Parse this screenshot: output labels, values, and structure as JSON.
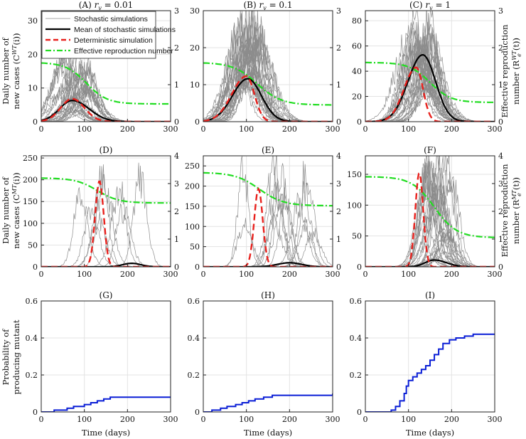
{
  "colors": {
    "stochastic": "#8c8c8c",
    "mean": "#000000",
    "deterministic": "#e8201c",
    "effective_r": "#22dd22",
    "probability": "#0a1ed6",
    "grid": "#e3e3e3",
    "axis": "#222222"
  },
  "legend": {
    "stochastic": "Stochastic simulations",
    "mean": "Mean of stochastic simulations",
    "deterministic": "Deterministic simulation",
    "effective_r": "Effective reproduction number"
  },
  "labels": {
    "row1_ylabel_left_1": "Daily number of",
    "row1_ylabel_left_2": "new cases (C",
    "row1_ylabel_left_sup": "WT",
    "row1_ylabel_left_tail": "(i))",
    "row1_ylabel_right_1": "Effective reproduction",
    "row1_ylabel_right_2": "number (R",
    "row1_ylabel_right_sup": "WT",
    "row1_ylabel_right_sub": "e",
    "row1_ylabel_right_tail": "(t))",
    "row2_ylabel_left_1": "Daily number of",
    "row2_ylabel_left_2": "new cases (C",
    "row2_ylabel_left_sup": "MT",
    "row2_ylabel_left_tail": "(i))",
    "row2_ylabel_right_1": "Effective reproduction",
    "row2_ylabel_right_2": "number (R",
    "row2_ylabel_right_sup": "MT",
    "row2_ylabel_right_sub": "e",
    "row2_ylabel_right_tail": "(t))",
    "row3_ylabel_1": "Probability of",
    "row3_ylabel_2": "producing mutant",
    "xlabel": "Time (days)"
  },
  "chart_data": [
    {
      "id": "A",
      "type": "line",
      "title": "(A) r_v = 0.01",
      "title_text": "(A) ",
      "rv": "0.01",
      "xlim": [
        0,
        300
      ],
      "xticks": [
        0,
        100,
        200,
        300
      ],
      "ylim": [
        0,
        33
      ],
      "yticks": [
        0,
        10,
        20,
        30
      ],
      "y2lim": [
        0,
        3
      ],
      "y2ticks": [
        0,
        1,
        2,
        3
      ],
      "stochastic_count": 30,
      "stoch_peak_range": [
        40,
        110
      ],
      "stoch_amp_range": [
        2,
        20
      ],
      "stoch_width": 35,
      "mean": {
        "peak_day": 72,
        "peak": 6.3,
        "width_left": 42,
        "width_right": 55
      },
      "deterministic": {
        "peak_day": 72,
        "peak": 6.8,
        "width_left": 38,
        "width_right": 40
      },
      "effective_r": {
        "start": 1.6,
        "end": 0.48,
        "mid_day": 105,
        "steepness": 24
      },
      "legend": true
    },
    {
      "id": "B",
      "type": "line",
      "title": "(B) r_v = 0.1",
      "title_text": "(B) ",
      "rv": "0.1",
      "xlim": [
        0,
        300
      ],
      "xticks": [
        0,
        100,
        200,
        300
      ],
      "ylim": [
        0,
        30
      ],
      "yticks": [
        0,
        10,
        20,
        30
      ],
      "y2lim": [
        0,
        3
      ],
      "y2ticks": [
        0,
        1,
        2,
        3
      ],
      "stochastic_count": 30,
      "stoch_peak_range": [
        70,
        130
      ],
      "stoch_amp_range": [
        8,
        28
      ],
      "stoch_width": 38,
      "mean": {
        "peak_day": 103,
        "peak": 11.6,
        "width_left": 50,
        "width_right": 45
      },
      "deterministic": {
        "peak_day": 100,
        "peak": 12.3,
        "width_left": 48,
        "width_right": 26
      },
      "effective_r": {
        "start": 1.6,
        "end": 0.45,
        "mid_day": 125,
        "steepness": 28
      },
      "legend": false
    },
    {
      "id": "C",
      "type": "line",
      "title": "(C) r_v = 1",
      "title_text": "(C) ",
      "rv": "1",
      "xlim": [
        0,
        300
      ],
      "xticks": [
        0,
        100,
        200,
        300
      ],
      "ylim": [
        0,
        88
      ],
      "yticks": [
        0,
        20,
        40,
        60,
        80
      ],
      "y2lim": [
        0,
        3
      ],
      "y2ticks": [
        0,
        1,
        2,
        3
      ],
      "stochastic_count": 30,
      "stoch_peak_range": [
        100,
        160
      ],
      "stoch_amp_range": [
        25,
        82
      ],
      "stoch_width": 38,
      "mean": {
        "peak_day": 133,
        "peak": 53,
        "width_left": 48,
        "width_right": 42
      },
      "deterministic": {
        "peak_day": 118,
        "peak": 43,
        "width_left": 40,
        "width_right": 22
      },
      "effective_r": {
        "start": 1.6,
        "end": 0.52,
        "mid_day": 150,
        "steepness": 24
      },
      "legend": false
    },
    {
      "id": "D",
      "type": "line",
      "title": "(D)",
      "title_text": "(D)",
      "rv": "",
      "xlim": [
        0,
        300
      ],
      "xticks": [
        0,
        100,
        200,
        300
      ],
      "ylim": [
        0,
        255
      ],
      "yticks": [
        0,
        50,
        100,
        150,
        200,
        250
      ],
      "y2lim": [
        0,
        4
      ],
      "y2ticks": [
        0,
        1,
        2,
        3,
        4
      ],
      "stochastic_count": 8,
      "stoch_peak_range": [
        80,
        230
      ],
      "stoch_amp_range": [
        100,
        230
      ],
      "stoch_width": 22,
      "mean": {
        "peak_day": 210,
        "peak": 8,
        "width_left": 30,
        "width_right": 30
      },
      "deterministic": {
        "peak_day": 135,
        "peak": 197,
        "width_left": 14,
        "width_right": 14
      },
      "effective_r": {
        "start": 3.2,
        "end": 2.3,
        "mid_day": 130,
        "steepness": 25
      },
      "legend": false
    },
    {
      "id": "E",
      "type": "line",
      "title": "(E)",
      "title_text": "(E)",
      "rv": "",
      "xlim": [
        0,
        300
      ],
      "xticks": [
        0,
        100,
        200,
        300
      ],
      "ylim": [
        0,
        275
      ],
      "yticks": [
        0,
        50,
        100,
        150,
        200,
        250
      ],
      "y2lim": [
        0,
        4
      ],
      "y2ticks": [
        0,
        1,
        2,
        3,
        4
      ],
      "stochastic_count": 14,
      "stoch_peak_range": [
        90,
        270
      ],
      "stoch_amp_range": [
        80,
        260
      ],
      "stoch_width": 20,
      "mean": {
        "peak_day": 200,
        "peak": 10,
        "width_left": 40,
        "width_right": 40
      },
      "deterministic": {
        "peak_day": 128,
        "peak": 193,
        "width_left": 14,
        "width_right": 14
      },
      "effective_r": {
        "start": 3.4,
        "end": 2.2,
        "mid_day": 130,
        "steepness": 28
      },
      "legend": false
    },
    {
      "id": "F",
      "type": "line",
      "title": "(F)",
      "title_text": "(F)",
      "rv": "",
      "xlim": [
        0,
        300
      ],
      "xticks": [
        0,
        100,
        200,
        300
      ],
      "ylim": [
        0,
        180
      ],
      "yticks": [
        0,
        50,
        100,
        150
      ],
      "y2lim": [
        0,
        4
      ],
      "y2ticks": [
        0,
        1,
        2,
        3,
        4
      ],
      "stochastic_count": 30,
      "stoch_peak_range": [
        130,
        200
      ],
      "stoch_amp_range": [
        10,
        170
      ],
      "stoch_width": 26,
      "mean": {
        "peak_day": 160,
        "peak": 11,
        "width_left": 30,
        "width_right": 40
      },
      "deterministic": {
        "peak_day": 125,
        "peak": 152,
        "width_left": 13,
        "width_right": 13
      },
      "effective_r": {
        "start": 3.25,
        "end": 1.05,
        "mid_day": 160,
        "steepness": 26
      },
      "legend": false
    },
    {
      "id": "G",
      "type": "step",
      "title": "(G)",
      "xlim": [
        0,
        300
      ],
      "xticks": [
        0,
        100,
        200,
        300
      ],
      "ylim": [
        0,
        0.6
      ],
      "yticks": [
        0,
        0.2,
        0.4,
        0.6
      ],
      "x": [
        0,
        30,
        60,
        75,
        100,
        115,
        130,
        145,
        160,
        300
      ],
      "y": [
        0,
        0.01,
        0.02,
        0.03,
        0.04,
        0.05,
        0.06,
        0.07,
        0.08,
        0.08
      ]
    },
    {
      "id": "H",
      "type": "step",
      "title": "(H)",
      "xlim": [
        0,
        300
      ],
      "xticks": [
        0,
        100,
        200,
        300
      ],
      "ylim": [
        0,
        0.6
      ],
      "yticks": [
        0,
        0.2,
        0.4,
        0.6
      ],
      "x": [
        0,
        20,
        40,
        55,
        75,
        90,
        105,
        120,
        140,
        160,
        300
      ],
      "y": [
        0,
        0.01,
        0.02,
        0.03,
        0.04,
        0.05,
        0.06,
        0.07,
        0.08,
        0.09,
        0.1
      ]
    },
    {
      "id": "I",
      "type": "step",
      "title": "(I)",
      "xlim": [
        0,
        300
      ],
      "xticks": [
        0,
        100,
        200,
        300
      ],
      "ylim": [
        0,
        0.6
      ],
      "yticks": [
        0,
        0.2,
        0.4,
        0.6
      ],
      "x": [
        0,
        60,
        70,
        80,
        90,
        95,
        100,
        110,
        120,
        130,
        140,
        150,
        160,
        170,
        180,
        195,
        210,
        230,
        250,
        300
      ],
      "y": [
        0,
        0.01,
        0.03,
        0.06,
        0.1,
        0.14,
        0.17,
        0.19,
        0.21,
        0.23,
        0.25,
        0.28,
        0.31,
        0.34,
        0.37,
        0.39,
        0.4,
        0.41,
        0.42,
        0.42
      ]
    }
  ]
}
